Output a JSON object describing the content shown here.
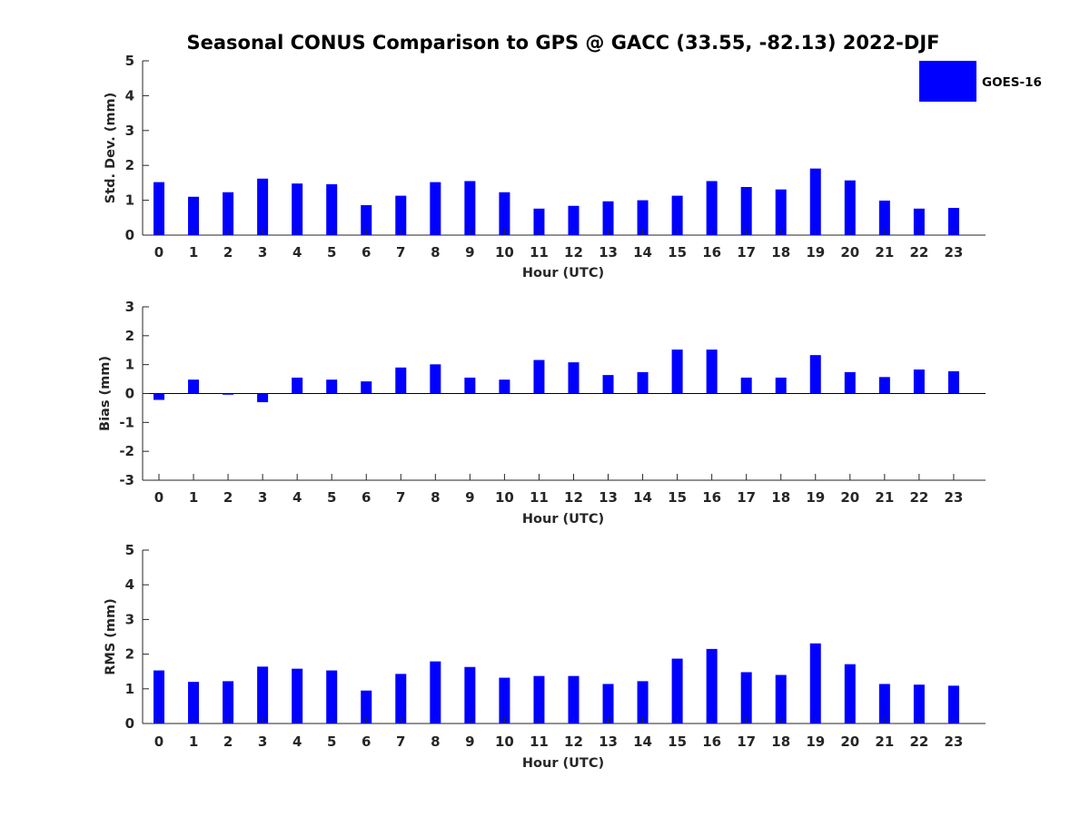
{
  "title": "Seasonal CONUS Comparison to GPS @ GACC (33.55, -82.13) 2022-DJF",
  "legend": {
    "label": "GOES-16",
    "color": "#0000ff"
  },
  "chart_data": [
    {
      "type": "bar",
      "name": "std-dev",
      "categories": [
        "0",
        "1",
        "2",
        "3",
        "4",
        "5",
        "6",
        "7",
        "8",
        "9",
        "10",
        "11",
        "12",
        "13",
        "14",
        "15",
        "16",
        "17",
        "18",
        "19",
        "20",
        "21",
        "22",
        "23"
      ],
      "values": [
        1.52,
        1.1,
        1.23,
        1.62,
        1.48,
        1.46,
        0.86,
        1.13,
        1.52,
        1.55,
        1.23,
        0.76,
        0.84,
        0.97,
        1.0,
        1.13,
        1.55,
        1.38,
        1.31,
        1.91,
        1.57,
        0.99,
        0.76,
        0.78
      ],
      "xlabel": "Hour (UTC)",
      "ylabel": "Std. Dev. (mm)",
      "ylim": [
        0,
        5
      ],
      "yticks": [
        "0",
        "1",
        "2",
        "3",
        "4",
        "5"
      ]
    },
    {
      "type": "bar",
      "name": "bias",
      "categories": [
        "0",
        "1",
        "2",
        "3",
        "4",
        "5",
        "6",
        "7",
        "8",
        "9",
        "10",
        "11",
        "12",
        "13",
        "14",
        "15",
        "16",
        "17",
        "18",
        "19",
        "20",
        "21",
        "22",
        "23"
      ],
      "values": [
        -0.22,
        0.48,
        -0.04,
        -0.3,
        0.55,
        0.48,
        0.42,
        0.9,
        1.01,
        0.55,
        0.48,
        1.16,
        1.08,
        0.64,
        0.74,
        1.52,
        1.52,
        0.55,
        0.55,
        1.33,
        0.74,
        0.57,
        0.83,
        0.77
      ],
      "xlabel": "Hour (UTC)",
      "ylabel": "Bias (mm)",
      "ylim": [
        -3,
        3
      ],
      "yticks": [
        "-3",
        "-2",
        "-1",
        "0",
        "1",
        "2",
        "3"
      ]
    },
    {
      "type": "bar",
      "name": "rms",
      "categories": [
        "0",
        "1",
        "2",
        "3",
        "4",
        "5",
        "6",
        "7",
        "8",
        "9",
        "10",
        "11",
        "12",
        "13",
        "14",
        "15",
        "16",
        "17",
        "18",
        "19",
        "20",
        "21",
        "22",
        "23"
      ],
      "values": [
        1.53,
        1.2,
        1.22,
        1.64,
        1.58,
        1.53,
        0.95,
        1.43,
        1.79,
        1.63,
        1.32,
        1.37,
        1.37,
        1.14,
        1.22,
        1.87,
        2.15,
        1.48,
        1.4,
        2.31,
        1.71,
        1.14,
        1.12,
        1.09
      ],
      "xlabel": "Hour (UTC)",
      "ylabel": "RMS (mm)",
      "ylim": [
        0,
        5
      ],
      "yticks": [
        "0",
        "1",
        "2",
        "3",
        "4",
        "5"
      ]
    }
  ]
}
